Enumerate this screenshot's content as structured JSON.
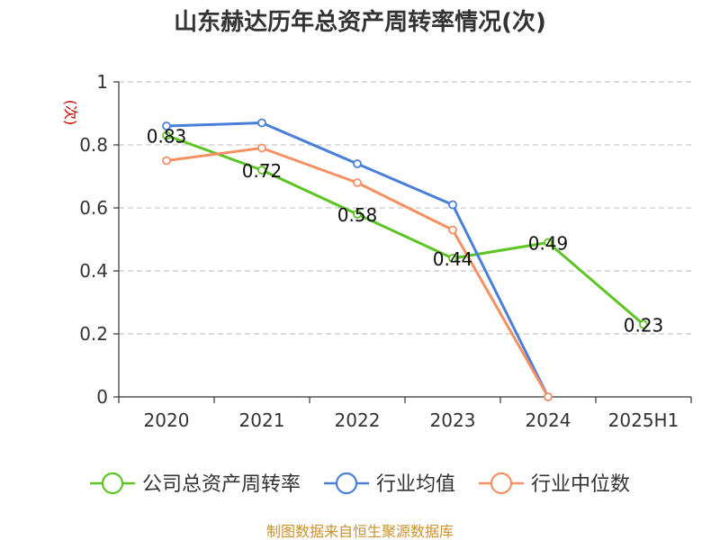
{
  "chart_data": {
    "type": "line",
    "title": "山东赫达历年总资产周转率情况(次)",
    "ylabel": "(次)",
    "xlabel": "",
    "categories": [
      "2020",
      "2021",
      "2022",
      "2023",
      "2024",
      "2025H1"
    ],
    "ylim": [
      0,
      1
    ],
    "yticks": [
      0,
      0.2,
      0.4,
      0.6,
      0.8,
      1
    ],
    "ytick_labels": [
      "0",
      "0.2",
      "0.4",
      "0.6",
      "0.8",
      "1"
    ],
    "grid": true,
    "legend_position": "bottom",
    "series": [
      {
        "name": "公司总资产周转率",
        "color": "#5cc423",
        "values": [
          0.83,
          0.72,
          0.58,
          0.44,
          0.49,
          0.23
        ],
        "labels": [
          "0.83",
          "0.72",
          "0.58",
          "0.44",
          "0.49",
          "0.23"
        ]
      },
      {
        "name": "行业均值",
        "color": "#4a7fd9",
        "values": [
          0.86,
          0.87,
          0.74,
          0.61,
          0.0,
          null
        ]
      },
      {
        "name": "行业中位数",
        "color": "#f59062",
        "values": [
          0.75,
          0.79,
          0.68,
          0.53,
          0.0,
          null
        ]
      }
    ],
    "source": "制图数据来自恒生聚源数据库"
  }
}
